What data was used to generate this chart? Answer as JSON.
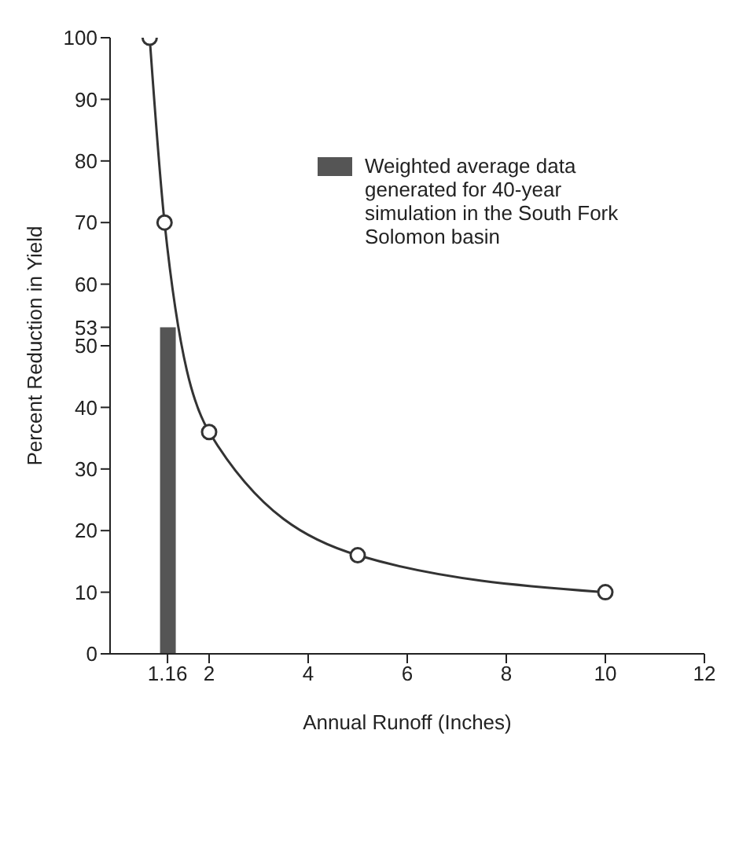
{
  "chart_data": {
    "type": "line",
    "xlabel": "Annual Runoff (Inches)",
    "ylabel": "Percent Reduction in Yield",
    "xlim": [
      0,
      12
    ],
    "xticks": [
      1.16,
      2,
      4,
      6,
      8,
      10,
      12
    ],
    "ylim": [
      0,
      100
    ],
    "yticks": [
      0,
      10,
      20,
      30,
      40,
      50,
      53,
      60,
      70,
      80,
      90,
      100
    ],
    "series": [
      {
        "type": "bar",
        "name": "Weighted average data generated for 40-year simulation in the South Fork Solomon basin",
        "color": "#555555",
        "x": [
          1.16
        ],
        "values": [
          53
        ]
      },
      {
        "color": "#333333",
        "x": [
          0.8,
          1.1,
          2,
          5,
          10
        ],
        "values": [
          100,
          70,
          36,
          16,
          10
        ]
      }
    ],
    "marker": "circle",
    "legend": "top right"
  }
}
